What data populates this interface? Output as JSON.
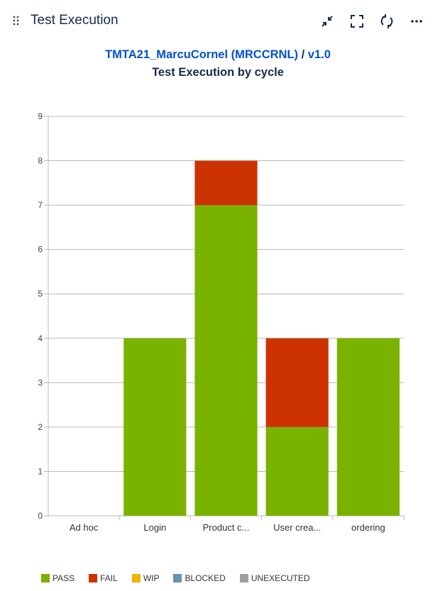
{
  "header": {
    "title": "Test Execution",
    "icons": [
      "drag-handle-icon",
      "collapse-icon",
      "fullscreen-icon",
      "refresh-icon",
      "more-icon"
    ]
  },
  "subtitle": {
    "project": "TMTA21_MarcuCornel (MRCCRNL)",
    "separator": " / ",
    "version": "v1.0"
  },
  "chart_data": {
    "type": "bar",
    "stacked": true,
    "title": "Test Execution by cycle",
    "xlabel": "",
    "ylabel": "",
    "ylim": [
      0,
      9
    ],
    "yticks": [
      0,
      1,
      2,
      3,
      4,
      5,
      6,
      7,
      8,
      9
    ],
    "grid": true,
    "legend_position": "bottom-left",
    "categories": [
      "Ad hoc",
      "Login",
      "Product c...",
      "User crea...",
      "ordering"
    ],
    "series": [
      {
        "name": "PASS",
        "color": "#7ab200",
        "values": [
          0,
          4,
          7,
          2,
          4
        ]
      },
      {
        "name": "FAIL",
        "color": "#cc3300",
        "values": [
          0,
          0,
          1,
          2,
          0
        ]
      },
      {
        "name": "WIP",
        "color": "#f2b200",
        "values": [
          0,
          0,
          0,
          0,
          0
        ]
      },
      {
        "name": "BLOCKED",
        "color": "#6693b0",
        "values": [
          0,
          0,
          0,
          0,
          0
        ]
      },
      {
        "name": "UNEXECUTED",
        "color": "#a0a0a0",
        "values": [
          0,
          0,
          0,
          0,
          0
        ]
      }
    ]
  }
}
